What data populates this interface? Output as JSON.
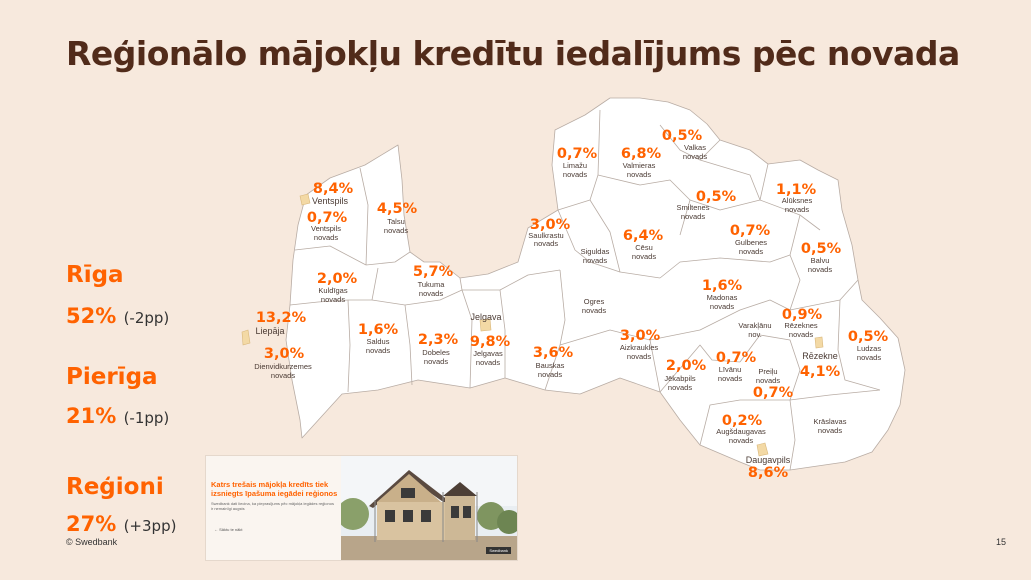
{
  "title": "Reģionālo mājokļu kredītu iedalījums pēc novada",
  "summary": [
    {
      "name": "Rīga",
      "value": "52%",
      "delta": "(-2pp)"
    },
    {
      "name": "Pierīga",
      "value": "21%",
      "delta": "(-1pp)"
    },
    {
      "name": "Reģioni",
      "value": "27%",
      "delta": "(+3pp)"
    }
  ],
  "regions": [
    {
      "pct": "8,4%",
      "name": "Ventspils"
    },
    {
      "pct": "0,7%",
      "name": "Ventspils novads"
    },
    {
      "pct": "4,5%",
      "name": "Talsu novads"
    },
    {
      "pct": "2,0%",
      "name": "Kuldīgas novads"
    },
    {
      "pct": "5,7%",
      "name": "Tukuma novads"
    },
    {
      "pct": "13,2%",
      "name": "Liepāja"
    },
    {
      "pct": "3,0%",
      "name": "Dienvidkurzemes novads"
    },
    {
      "pct": "1,6%",
      "name": "Saldus novads"
    },
    {
      "pct": "2,3%",
      "name": "Dobeles novads"
    },
    {
      "pct": "9,8%",
      "name": "Jelgavas novads"
    },
    {
      "pct": "",
      "name": "Jelgava"
    },
    {
      "pct": "3,6%",
      "name": "Bauskas novads"
    },
    {
      "pct": "0,7%",
      "name": "Limažu novads"
    },
    {
      "pct": "6,8%",
      "name": "Valmieras novads"
    },
    {
      "pct": "0,5%",
      "name": "Valkas novads"
    },
    {
      "pct": "3,0%",
      "name": "Saulkrastu novads"
    },
    {
      "pct": "",
      "name": "Siguldas novads"
    },
    {
      "pct": "6,4%",
      "name": "Cēsu novads"
    },
    {
      "pct": "0,5%",
      "name": "Smiltenes novads"
    },
    {
      "pct": "1,1%",
      "name": "Alūksnes novads"
    },
    {
      "pct": "0,7%",
      "name": "Gulbenes novads"
    },
    {
      "pct": "0,5%",
      "name": "Balvu novads"
    },
    {
      "pct": "",
      "name": "Ogres novads"
    },
    {
      "pct": "1,6%",
      "name": "Madonas novads"
    },
    {
      "pct": "3,0%",
      "name": "Aizkraukles novads"
    },
    {
      "pct": "0,9%",
      "name": "Rēzeknes novads"
    },
    {
      "pct": "",
      "name": "Varakļānu nov."
    },
    {
      "pct": "0,5%",
      "name": "Ludzas novads"
    },
    {
      "pct": "2,0%",
      "name": "Jēkabpils novads"
    },
    {
      "pct": "0,7%",
      "name": "Līvānu novads"
    },
    {
      "pct": "",
      "name": "Preiļu novads"
    },
    {
      "pct": "4,1%",
      "name": "Rēzekne"
    },
    {
      "pct": "0,7%",
      "name": ""
    },
    {
      "pct": "0,2%",
      "name": "Augšdaugavas novads"
    },
    {
      "pct": "",
      "name": "Krāslavas novads"
    },
    {
      "pct": "8,6%",
      "name": "Daugavpils"
    }
  ],
  "thumbnail": {
    "headline": "Katrs trešais mājokļa kredīts tiek izsniegts īpašuma iegādei reģionos",
    "subtext": "Swedbank dati liecina, ka pieprasījums pēc mājokļa iegādes reģionos ir nemainīgi augsts",
    "link": "Sāktu te nākt",
    "badge": "Swedbank"
  },
  "footer": "© Swedbank",
  "page_number": "15",
  "colors": {
    "accent": "#ff6200",
    "title": "#512b1a",
    "background": "#f7e9dd",
    "map_fill": "#ffffff",
    "map_stroke": "#b8aca4",
    "city": "#f3d9a5"
  }
}
